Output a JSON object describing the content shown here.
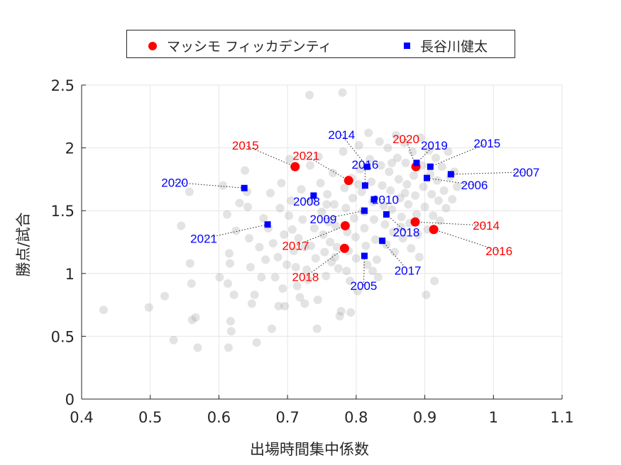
{
  "chart_data": {
    "type": "scatter",
    "xlabel": "出場時間集中係数",
    "ylabel": "勝点/試合",
    "xlim": [
      0.4,
      1.1
    ],
    "ylim": [
      0,
      2.5
    ],
    "xticks": [
      "0.4",
      "0.5",
      "0.6",
      "0.7",
      "0.8",
      "0.9",
      "1",
      "1.1"
    ],
    "yticks": [
      "0",
      "0.5",
      "1",
      "1.5",
      "2",
      "2.5"
    ],
    "grid": true,
    "legend": "top",
    "background_points": [
      [
        0.432,
        0.71
      ],
      [
        0.498,
        0.73
      ],
      [
        0.521,
        0.82
      ],
      [
        0.534,
        0.47
      ],
      [
        0.545,
        1.38
      ],
      [
        0.557,
        1.65
      ],
      [
        0.558,
        1.08
      ],
      [
        0.56,
        0.92
      ],
      [
        0.561,
        0.63
      ],
      [
        0.566,
        0.65
      ],
      [
        0.569,
        0.41
      ],
      [
        0.601,
        0.97
      ],
      [
        0.606,
        1.7
      ],
      [
        0.612,
        1.47
      ],
      [
        0.613,
        0.92
      ],
      [
        0.615,
        1.16
      ],
      [
        0.616,
        1.08
      ],
      [
        0.617,
        0.62
      ],
      [
        0.614,
        0.41
      ],
      [
        0.618,
        0.54
      ],
      [
        0.622,
        0.83
      ],
      [
        0.625,
        1.34
      ],
      [
        0.63,
        1.56
      ],
      [
        0.638,
        1.82
      ],
      [
        0.641,
        1.65
      ],
      [
        0.642,
        1.53
      ],
      [
        0.644,
        1.28
      ],
      [
        0.646,
        1.05
      ],
      [
        0.648,
        0.76
      ],
      [
        0.652,
        0.83
      ],
      [
        0.655,
        0.45
      ],
      [
        0.659,
        1.21
      ],
      [
        0.662,
        0.97
      ],
      [
        0.665,
        1.44
      ],
      [
        0.668,
        1.11
      ],
      [
        0.672,
        1.36
      ],
      [
        0.675,
        1.64
      ],
      [
        0.677,
        0.56
      ],
      [
        0.679,
        1.24
      ],
      [
        0.682,
        0.97
      ],
      [
        0.686,
        1.13
      ],
      [
        0.689,
        1.52
      ],
      [
        0.691,
        1.72
      ],
      [
        0.693,
        0.88
      ],
      [
        0.695,
        1.31
      ],
      [
        0.696,
        0.74
      ],
      [
        0.699,
        1.07
      ],
      [
        0.702,
        1.46
      ],
      [
        0.703,
        1.91
      ],
      [
        0.705,
        1.58
      ],
      [
        0.707,
        1.35
      ],
      [
        0.709,
        1.18
      ],
      [
        0.712,
        1.05
      ],
      [
        0.714,
        0.9
      ],
      [
        0.716,
        1.28
      ],
      [
        0.718,
        0.81
      ],
      [
        0.72,
        1.67
      ],
      [
        0.722,
        1.43
      ],
      [
        0.725,
        1.21
      ],
      [
        0.728,
        1.03
      ],
      [
        0.73,
        0.95
      ],
      [
        0.732,
        2.42
      ],
      [
        0.733,
        1.86
      ],
      [
        0.736,
        1.58
      ],
      [
        0.739,
        1.36
      ],
      [
        0.741,
        1.12
      ],
      [
        0.743,
        0.56
      ],
      [
        0.745,
        1.93
      ],
      [
        0.748,
        1.72
      ],
      [
        0.75,
        1.49
      ],
      [
        0.752,
        1.31
      ],
      [
        0.754,
        1.17
      ],
      [
        0.756,
        0.98
      ],
      [
        0.758,
        1.63
      ],
      [
        0.76,
        1.41
      ],
      [
        0.762,
        1.25
      ],
      [
        0.764,
        1.09
      ],
      [
        0.766,
        1.8
      ],
      [
        0.768,
        1.55
      ],
      [
        0.77,
        1.38
      ],
      [
        0.772,
        1.21
      ],
      [
        0.774,
        1.04
      ],
      [
        0.776,
        0.66
      ],
      [
        0.778,
        0.7
      ],
      [
        0.78,
        2.44
      ],
      [
        0.781,
        1.97
      ],
      [
        0.783,
        1.68
      ],
      [
        0.785,
        1.52
      ],
      [
        0.787,
        1.33
      ],
      [
        0.789,
        1.18
      ],
      [
        0.791,
        0.94
      ],
      [
        0.793,
        1.76
      ],
      [
        0.795,
        1.6
      ],
      [
        0.797,
        1.44
      ],
      [
        0.799,
        1.29
      ],
      [
        0.8,
        1.12
      ],
      [
        0.802,
        0.86
      ],
      [
        0.804,
        2.02
      ],
      [
        0.806,
        1.83
      ],
      [
        0.808,
        1.65
      ],
      [
        0.81,
        1.5
      ],
      [
        0.812,
        1.36
      ],
      [
        0.814,
        1.22
      ],
      [
        0.816,
        1.07
      ],
      [
        0.818,
        2.12
      ],
      [
        0.82,
        1.91
      ],
      [
        0.822,
        1.73
      ],
      [
        0.824,
        1.57
      ],
      [
        0.826,
        1.43
      ],
      [
        0.828,
        1.27
      ],
      [
        0.83,
        1.11
      ],
      [
        0.832,
        0.97
      ],
      [
        0.834,
        2.05
      ],
      [
        0.836,
        1.86
      ],
      [
        0.838,
        1.7
      ],
      [
        0.84,
        1.54
      ],
      [
        0.842,
        1.39
      ],
      [
        0.844,
        1.23
      ],
      [
        0.846,
        2.0
      ],
      [
        0.848,
        1.81
      ],
      [
        0.85,
        1.66
      ],
      [
        0.852,
        1.51
      ],
      [
        0.854,
        1.33
      ],
      [
        0.856,
        1.17
      ],
      [
        0.858,
        2.1
      ],
      [
        0.86,
        1.92
      ],
      [
        0.862,
        1.75
      ],
      [
        0.864,
        1.6
      ],
      [
        0.866,
        1.45
      ],
      [
        0.868,
        1.28
      ],
      [
        0.87,
        2.04
      ],
      [
        0.872,
        1.88
      ],
      [
        0.874,
        1.71
      ],
      [
        0.876,
        1.55
      ],
      [
        0.878,
        1.4
      ],
      [
        0.88,
        1.2
      ],
      [
        0.882,
        1.97
      ],
      [
        0.884,
        1.78
      ],
      [
        0.886,
        1.62
      ],
      [
        0.888,
        1.47
      ],
      [
        0.89,
        1.31
      ],
      [
        0.892,
        1.13
      ],
      [
        0.894,
        2.08
      ],
      [
        0.896,
        1.86
      ],
      [
        0.898,
        1.69
      ],
      [
        0.9,
        1.53
      ],
      [
        0.902,
        0.83
      ],
      [
        0.904,
        1.35
      ],
      [
        0.906,
        1.98
      ],
      [
        0.908,
        1.79
      ],
      [
        0.91,
        1.63
      ],
      [
        0.912,
        1.46
      ],
      [
        0.914,
        0.94
      ],
      [
        0.916,
        1.92
      ],
      [
        0.918,
        1.74
      ],
      [
        0.92,
        1.58
      ],
      [
        0.922,
        1.42
      ],
      [
        0.925,
        1.85
      ],
      [
        0.928,
        1.66
      ],
      [
        0.931,
        1.52
      ],
      [
        0.934,
        1.97
      ],
      [
        0.937,
        1.77
      ],
      [
        0.94,
        1.59
      ],
      [
        0.943,
        1.81
      ],
      [
        0.947,
        1.69
      ],
      [
        0.792,
        0.69
      ],
      [
        0.725,
        0.76
      ],
      [
        0.769,
        1.13
      ],
      [
        0.786,
        1.02
      ],
      [
        0.812,
        1.49
      ],
      [
        0.852,
        1.88
      ],
      [
        0.871,
        1.64
      ],
      [
        0.734,
        1.22
      ],
      [
        0.757,
        1.55
      ],
      [
        0.803,
        1.71
      ],
      [
        0.865,
        1.37
      ],
      [
        0.824,
        1.02
      ],
      [
        0.744,
        0.79
      ],
      [
        0.687,
        0.74
      ]
    ],
    "series": [
      {
        "name": "マッシモ フィッカデンティ",
        "color": "#ff0000",
        "marker": "circle",
        "points": [
          {
            "label": "2015",
            "x": 0.711,
            "y": 1.85
          },
          {
            "label": "2021",
            "x": 0.789,
            "y": 1.74
          },
          {
            "label": "2017",
            "x": 0.784,
            "y": 1.38
          },
          {
            "label": "2018",
            "x": 0.783,
            "y": 1.2
          },
          {
            "label": "2020",
            "x": 0.887,
            "y": 1.85
          },
          {
            "label": "2014",
            "x": 0.886,
            "y": 1.41
          },
          {
            "label": "2016",
            "x": 0.913,
            "y": 1.35
          }
        ]
      },
      {
        "name": "長谷川健太",
        "color": "#0000ff",
        "marker": "square",
        "points": [
          {
            "label": "2020",
            "x": 0.637,
            "y": 1.68
          },
          {
            "label": "2008",
            "x": 0.738,
            "y": 1.62
          },
          {
            "label": "2021",
            "x": 0.671,
            "y": 1.39
          },
          {
            "label": "2014",
            "x": 0.816,
            "y": 1.85
          },
          {
            "label": "2016",
            "x": 0.813,
            "y": 1.7
          },
          {
            "label": "2010",
            "x": 0.826,
            "y": 1.59
          },
          {
            "label": "2009",
            "x": 0.812,
            "y": 1.5
          },
          {
            "label": "2018",
            "x": 0.844,
            "y": 1.47
          },
          {
            "label": "2017",
            "x": 0.838,
            "y": 1.26
          },
          {
            "label": "2005",
            "x": 0.812,
            "y": 1.14
          },
          {
            "label": "2019",
            "x": 0.888,
            "y": 1.88
          },
          {
            "label": "2015",
            "x": 0.908,
            "y": 1.85
          },
          {
            "label": "2007",
            "x": 0.938,
            "y": 1.79
          },
          {
            "label": "2006",
            "x": 0.903,
            "y": 1.76
          }
        ]
      }
    ]
  }
}
